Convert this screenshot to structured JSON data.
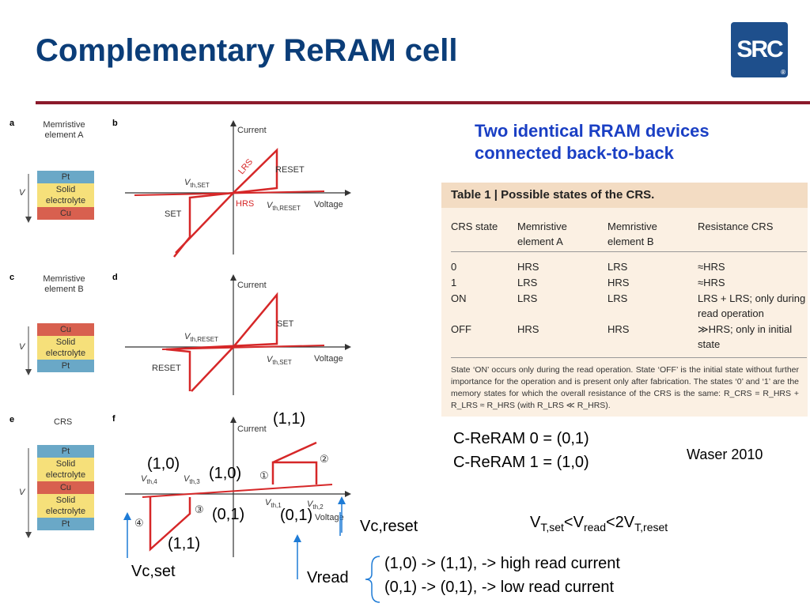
{
  "title": "Complementary ReRAM cell",
  "logo": {
    "text": "SRC",
    "reg": "®"
  },
  "subtitle_lines": [
    "Two identical RRAM devices",
    "connected back-to-back"
  ],
  "panels": {
    "a": {
      "label": "a",
      "caption_lines": [
        "Memristive",
        "element A"
      ],
      "layers": [
        "Pt",
        "Solid electrolyte",
        "Cu"
      ],
      "v": "V"
    },
    "b": {
      "label": "b",
      "current": "Current",
      "voltage": "Voltage",
      "vth_set": "V",
      "vth_set_sub": "th,SET",
      "vth_reset": "V",
      "vth_reset_sub": "th,RESET",
      "lrs": "LRS",
      "hrs": "HRS",
      "set": "SET",
      "reset": "RESET"
    },
    "c": {
      "label": "c",
      "caption_lines": [
        "Memristive",
        "element B"
      ],
      "layers": [
        "Cu",
        "Solid electrolyte",
        "Pt"
      ],
      "v": "V"
    },
    "d": {
      "label": "d",
      "current": "Current",
      "voltage": "Voltage",
      "vth_reset": "V",
      "vth_reset_sub": "th,RESET",
      "vth_set": "V",
      "vth_set_sub": "th,SET",
      "set": "SET",
      "reset": "RESET"
    },
    "e": {
      "label": "e",
      "caption": "CRS",
      "layers": [
        "Pt",
        "Solid electrolyte",
        "Cu",
        "Solid electrolyte",
        "Pt"
      ],
      "v": "V"
    },
    "f": {
      "label": "f",
      "current": "Current",
      "voltage": "Voltage",
      "vth4": "V",
      "vth4_sub": "th,4",
      "vth3": "V",
      "vth3_sub": "th,3",
      "vth1": "V",
      "vth1_sub": "th,1",
      "vth2": "V",
      "vth2_sub": "th,2",
      "m1": "①",
      "m2": "②",
      "m3": "③",
      "m4": "④"
    }
  },
  "annotations": {
    "s11_top": "(1,1)",
    "s10_left": "(1,0)",
    "s10_mid": "(1,0)",
    "s01_mid": "(0,1)",
    "s01_right": "(0,1)",
    "s11_bottom": "(1,1)",
    "vc_set": "Vc,set",
    "vc_reset": "Vc,reset",
    "vread": "Vread"
  },
  "table": {
    "caption": "Table 1 | Possible states of the CRS.",
    "headers": [
      "CRS state",
      "Memristive element A",
      "Memristive element B",
      "Resistance CRS"
    ],
    "rows": [
      [
        "0",
        "HRS",
        "LRS",
        "≈HRS"
      ],
      [
        "1",
        "LRS",
        "HRS",
        "≈HRS"
      ],
      [
        "ON",
        "LRS",
        "LRS",
        "LRS + LRS; only during read operation"
      ],
      [
        "OFF",
        "HRS",
        "HRS",
        "≫HRS; only in initial state"
      ]
    ],
    "footnote": "State ‘ON’ occurs only during the read operation. State ‘OFF’ is the initial state without further importance for the operation and is present only after fabrication. The states ‘0’ and ‘1’ are the memory states for which the overall resistance of the CRS is the same: R_CRS = R_HRS + R_LRS ≈ R_HRS (with R_LRS ≪ R_HRS)."
  },
  "right_text": {
    "creram0": "C-ReRAM 0 = (0,1)",
    "creram1": "C-ReRAM 1 = (1,0)",
    "waser": "Waser 2010",
    "formula_v1": "V",
    "formula_sub1": "T,set",
    "formula_lt1": "<V",
    "formula_sub2": "read",
    "formula_lt2": "<2V",
    "formula_sub3": "T,reset",
    "read1": "(1,0) -> (1,1), -> high read current",
    "read2": "(0,1) -> (0,1), -> low read current"
  }
}
